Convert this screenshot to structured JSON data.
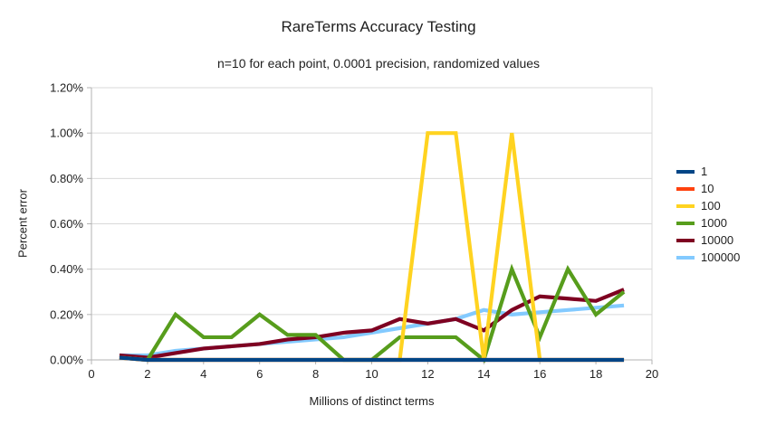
{
  "chart_data": {
    "type": "line",
    "title": "RareTerms Accuracy Testing",
    "subtitle": "n=10 for each point, 0.0001 precision, randomized values",
    "xlabel": "Millions of distinct terms",
    "ylabel": "Percent error",
    "xlim": [
      0,
      20
    ],
    "ylim": [
      0,
      1.2
    ],
    "grid": "horizontal-only",
    "legend_position": "right",
    "x_ticks": [
      {
        "v": 0,
        "label": "0"
      },
      {
        "v": 2,
        "label": "2"
      },
      {
        "v": 4,
        "label": "4"
      },
      {
        "v": 6,
        "label": "6"
      },
      {
        "v": 8,
        "label": "8"
      },
      {
        "v": 10,
        "label": "10"
      },
      {
        "v": 12,
        "label": "12"
      },
      {
        "v": 14,
        "label": "14"
      },
      {
        "v": 16,
        "label": "16"
      },
      {
        "v": 18,
        "label": "18"
      },
      {
        "v": 20,
        "label": "20"
      }
    ],
    "y_ticks": [
      {
        "v": 0.0,
        "label": "0.00%"
      },
      {
        "v": 0.2,
        "label": "0.20%"
      },
      {
        "v": 0.4,
        "label": "0.40%"
      },
      {
        "v": 0.6,
        "label": "0.60%"
      },
      {
        "v": 0.8,
        "label": "0.80%"
      },
      {
        "v": 1.0,
        "label": "1.00%"
      },
      {
        "v": 1.2,
        "label": "1.20%"
      }
    ],
    "x": [
      1,
      2,
      3,
      4,
      5,
      6,
      7,
      8,
      9,
      10,
      11,
      12,
      13,
      14,
      15,
      16,
      17,
      18,
      19
    ],
    "series": [
      {
        "name": "1",
        "color": "#004586",
        "values": [
          0.01,
          0,
          0,
          0,
          0,
          0,
          0,
          0,
          0,
          0,
          0,
          0,
          0,
          0,
          0,
          0,
          0,
          0,
          0
        ]
      },
      {
        "name": "10",
        "color": "#FF420E",
        "values": [
          0.01,
          0,
          0,
          0,
          0,
          0,
          0,
          0,
          0,
          0,
          0,
          0,
          0,
          0,
          0,
          0,
          0,
          0,
          0
        ]
      },
      {
        "name": "100",
        "color": "#FFD320",
        "values": [
          0.01,
          0,
          0,
          0,
          0,
          0,
          0,
          0,
          0,
          0,
          0,
          1.0,
          1.0,
          0,
          1.0,
          0,
          0,
          0,
          0
        ]
      },
      {
        "name": "1000",
        "color": "#579D1C",
        "values": [
          0.01,
          0,
          0.2,
          0.1,
          0.1,
          0.2,
          0.11,
          0.11,
          0,
          0,
          0.1,
          0.1,
          0.1,
          0,
          0.4,
          0.1,
          0.4,
          0.2,
          0.3
        ]
      },
      {
        "name": "10000",
        "color": "#7E0021",
        "values": [
          0.02,
          0.01,
          0.03,
          0.05,
          0.06,
          0.07,
          0.09,
          0.1,
          0.12,
          0.13,
          0.18,
          0.16,
          0.18,
          0.13,
          0.22,
          0.28,
          0.27,
          0.26,
          0.31
        ]
      },
      {
        "name": "100000",
        "color": "#83CAFF",
        "values": [
          0.02,
          0.02,
          0.04,
          0.05,
          0.06,
          0.07,
          0.08,
          0.09,
          0.1,
          0.12,
          0.14,
          0.16,
          0.18,
          0.22,
          0.2,
          0.21,
          0.22,
          0.23,
          0.24
        ]
      }
    ],
    "colors": {
      "grid": "#d9d9d9",
      "axis": "#b3b3b3",
      "text": "#1f1f1f"
    }
  }
}
